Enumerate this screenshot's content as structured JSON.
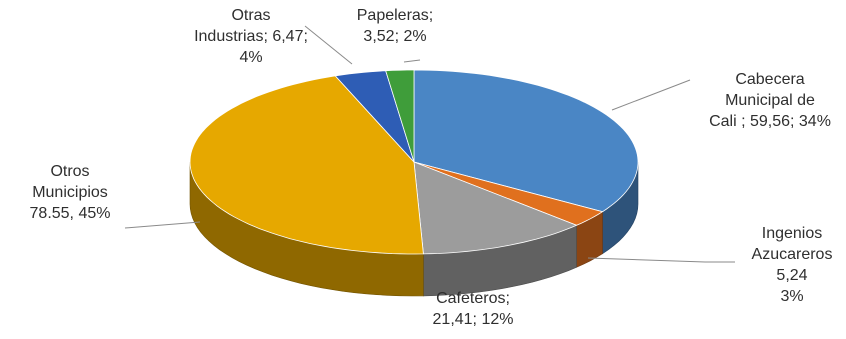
{
  "chart_data": {
    "type": "pie",
    "title": "",
    "slices": [
      {
        "label_lines": [
          "Cabecera",
          "Municipal de",
          "Cali ; 59,56; 34%"
        ],
        "value": 59.56,
        "percent": 34,
        "color": "#4a86c5"
      },
      {
        "label_lines": [
          "Ingenios",
          "Azucareros",
          "5,24",
          "3%"
        ],
        "value": 5.24,
        "percent": 3,
        "color": "#e0701e"
      },
      {
        "label_lines": [
          "Cafeteros;",
          "21,41; 12%"
        ],
        "value": 21.41,
        "percent": 12,
        "color": "#9c9c9c"
      },
      {
        "label_lines": [
          "Otros",
          "Municipios",
          "78.55, 45%"
        ],
        "value": 78.55,
        "percent": 45,
        "color": "#e6a800"
      },
      {
        "label_lines": [
          "Otras",
          "Industrias; 6,47;",
          "4%"
        ],
        "value": 6.47,
        "percent": 4,
        "color": "#2e5db5"
      },
      {
        "label_lines": [
          "Papeleras;",
          "3,52; 2%"
        ],
        "value": 3.52,
        "percent": 2,
        "color": "#3f9d3a"
      }
    ]
  }
}
